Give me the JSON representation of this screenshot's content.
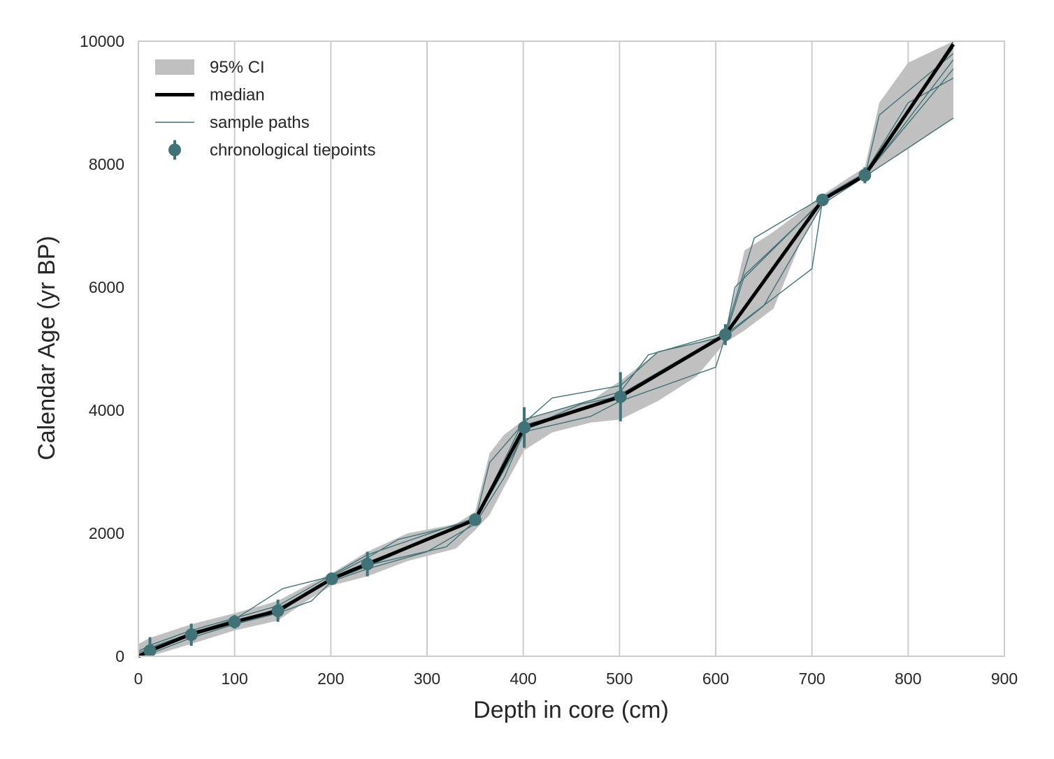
{
  "chart_data": {
    "type": "line",
    "title": "",
    "xlabel": "Depth in core (cm)",
    "ylabel": "Calendar Age (yr BP)",
    "xlim": [
      0,
      900
    ],
    "ylim": [
      0,
      10000
    ],
    "xticks": [
      0,
      100,
      200,
      300,
      400,
      500,
      600,
      700,
      800,
      900
    ],
    "yticks": [
      0,
      2000,
      4000,
      6000,
      8000,
      10000
    ],
    "grid": "vertical",
    "legend_position": "top-left",
    "colors": {
      "ci": "#c0c0c0",
      "median": "#000000",
      "samples": "#3f7377",
      "tiepoints": "#3f7377"
    },
    "legend": [
      {
        "label": "95% CI",
        "kind": "ci"
      },
      {
        "label": "median",
        "kind": "median"
      },
      {
        "label": "sample paths",
        "kind": "samples"
      },
      {
        "label": "chronological tiepoints",
        "kind": "tiepoints"
      }
    ],
    "series": [
      {
        "name": "median",
        "x": [
          0,
          12,
          55,
          100,
          145,
          201,
          238,
          350,
          401,
          501,
          610,
          711,
          755,
          847
        ],
        "y": [
          0,
          90,
          360,
          560,
          740,
          1260,
          1500,
          2220,
          3720,
          4220,
          5230,
          7420,
          7820,
          9950
        ]
      }
    ],
    "ci_band": {
      "x": [
        0,
        12,
        55,
        100,
        145,
        175,
        201,
        238,
        280,
        330,
        350,
        365,
        380,
        401,
        430,
        470,
        501,
        540,
        580,
        610,
        630,
        660,
        690,
        711,
        735,
        755,
        770,
        800,
        847
      ],
      "upper": [
        200,
        300,
        520,
        700,
        900,
        1150,
        1350,
        1700,
        2000,
        2150,
        2350,
        3300,
        3600,
        3850,
        3980,
        4150,
        4480,
        4950,
        5100,
        5250,
        6600,
        6900,
        7250,
        7500,
        7750,
        7950,
        9000,
        9650,
        10000
      ],
      "lower": [
        -50,
        -50,
        200,
        420,
        580,
        900,
        1150,
        1300,
        1550,
        1750,
        2050,
        2300,
        2750,
        3350,
        3640,
        3800,
        3850,
        4150,
        4550,
        5100,
        5300,
        5650,
        6800,
        7350,
        7650,
        7780,
        7950,
        8250,
        8750
      ]
    },
    "sample_paths": [
      {
        "x": [
          0,
          12,
          55,
          100,
          145,
          201,
          238,
          350,
          401,
          501,
          610,
          711,
          755,
          847
        ],
        "y": [
          20,
          110,
          330,
          580,
          700,
          1280,
          1530,
          2200,
          3760,
          4200,
          5230,
          7450,
          7800,
          10000
        ]
      },
      {
        "x": [
          0,
          12,
          55,
          100,
          145,
          201,
          238,
          350,
          401,
          501,
          610,
          711,
          755,
          847
        ],
        "y": [
          -30,
          60,
          400,
          540,
          780,
          1240,
          1460,
          2230,
          3680,
          4260,
          5250,
          7400,
          7830,
          9900
        ]
      },
      {
        "x": [
          0,
          12,
          55,
          100,
          150,
          201,
          238,
          270,
          350,
          365,
          401,
          430,
          501,
          540,
          610,
          630,
          711,
          755,
          770,
          847
        ],
        "y": [
          50,
          140,
          380,
          600,
          1100,
          1300,
          1600,
          1900,
          2200,
          3150,
          3800,
          4200,
          4400,
          4950,
          5200,
          6200,
          7400,
          7800,
          8800,
          9800
        ]
      },
      {
        "x": [
          0,
          12,
          55,
          100,
          145,
          180,
          201,
          238,
          300,
          350,
          380,
          401,
          470,
          501,
          600,
          610,
          650,
          711,
          755,
          847
        ],
        "y": [
          -40,
          40,
          300,
          520,
          700,
          900,
          1220,
          1420,
          1700,
          2150,
          2900,
          3650,
          3900,
          4150,
          4700,
          5200,
          5700,
          7350,
          7800,
          8750
        ]
      },
      {
        "x": [
          0,
          12,
          55,
          100,
          145,
          201,
          238,
          350,
          365,
          401,
          501,
          530,
          610,
          640,
          711,
          755,
          800,
          847
        ],
        "y": [
          80,
          180,
          420,
          620,
          820,
          1320,
          1650,
          2250,
          2700,
          3850,
          4300,
          4900,
          5260,
          6800,
          7460,
          7860,
          9000,
          9400
        ]
      },
      {
        "x": [
          0,
          12,
          55,
          100,
          145,
          201,
          238,
          350,
          401,
          501,
          610,
          700,
          711,
          755,
          847
        ],
        "y": [
          0,
          80,
          360,
          560,
          740,
          1260,
          1500,
          2220,
          3720,
          4220,
          5230,
          6300,
          7420,
          7820,
          9550
        ]
      },
      {
        "x": [
          0,
          12,
          55,
          100,
          145,
          201,
          238,
          320,
          350,
          390,
          401,
          460,
          501,
          610,
          620,
          711,
          755,
          847
        ],
        "y": [
          -10,
          120,
          340,
          570,
          760,
          1250,
          1480,
          1780,
          2200,
          3300,
          3700,
          4100,
          4230,
          5220,
          6000,
          7420,
          7800,
          9700
        ]
      }
    ],
    "tiepoints": [
      {
        "x": 12,
        "y": 90,
        "err": 220
      },
      {
        "x": 55,
        "y": 350,
        "err": 180
      },
      {
        "x": 100,
        "y": 560,
        "err": 110
      },
      {
        "x": 145,
        "y": 740,
        "err": 180
      },
      {
        "x": 201,
        "y": 1260,
        "err": 90
      },
      {
        "x": 238,
        "y": 1500,
        "err": 200
      },
      {
        "x": 350,
        "y": 2220,
        "err": 100
      },
      {
        "x": 401,
        "y": 3720,
        "err": 330
      },
      {
        "x": 501,
        "y": 4220,
        "err": 400
      },
      {
        "x": 610,
        "y": 5230,
        "err": 170
      },
      {
        "x": 711,
        "y": 7420,
        "err": 90
      },
      {
        "x": 755,
        "y": 7820,
        "err": 130
      }
    ]
  }
}
